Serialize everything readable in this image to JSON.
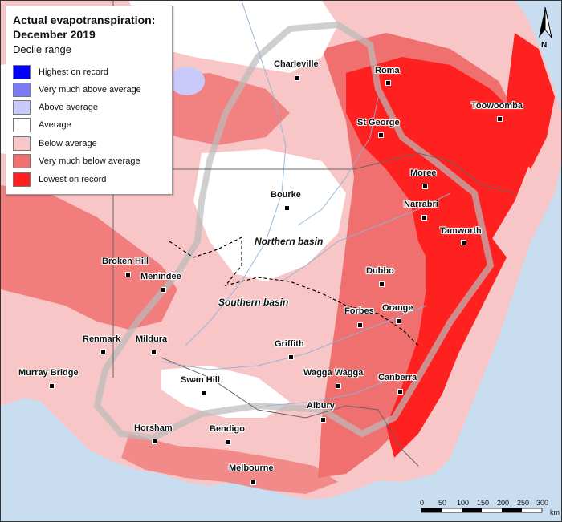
{
  "legend": {
    "title_line1": "Actual evapotranspiration:",
    "title_line2": "December 2019",
    "subtitle": "Decile range",
    "items": [
      {
        "label": "Highest on record",
        "color": "#0000ff"
      },
      {
        "label": "Very much above average",
        "color": "#7b7bf5"
      },
      {
        "label": "Above average",
        "color": "#c9c9fb"
      },
      {
        "label": "Average",
        "color": "#ffffff"
      },
      {
        "label": "Below average",
        "color": "#f8c6c6"
      },
      {
        "label": "Very much below average",
        "color": "#f07070"
      },
      {
        "label": "Lowest on record",
        "color": "#ff2020"
      }
    ]
  },
  "places": {
    "charleville": "Charleville",
    "roma": "Roma",
    "toowoomba": "Toowoomba",
    "st_george": "St George",
    "moree": "Moree",
    "narrabri": "Narrabri",
    "bourke": "Bourke",
    "tamworth": "Tamworth",
    "broken_hill": "Broken Hill",
    "menindee": "Menindee",
    "dubbo": "Dubbo",
    "orange": "Orange",
    "forbes": "Forbes",
    "renmark": "Renmark",
    "mildura": "Mildura",
    "griffith": "Griffith",
    "wagga_wagga": "Wagga Wagga",
    "canberra": "Canberra",
    "murray_bridge": "Murray Bridge",
    "swan_hill": "Swan Hill",
    "albury": "Albury",
    "horsham": "Horsham",
    "bendigo": "Bendigo",
    "melbourne": "Melbourne"
  },
  "basins": {
    "northern": "Northern basin",
    "southern": "Southern basin"
  },
  "scale": {
    "ticks": [
      "0",
      "50",
      "100",
      "150",
      "200",
      "250",
      "300"
    ],
    "unit": "km"
  },
  "north_arrow": {
    "label": "N",
    "icon": "north-arrow-icon"
  },
  "colors": {
    "sea": "#c9ddf0",
    "outside_land": "#ececec",
    "below": "#f8c6c6",
    "very_much_below": "#f07070",
    "lowest": "#ff2020",
    "average": "#ffffff",
    "above": "#c9c9fb"
  }
}
